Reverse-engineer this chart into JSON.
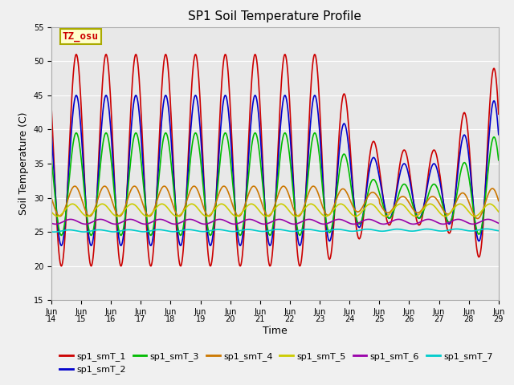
{
  "title": "SP1 Soil Temperature Profile",
  "xlabel": "Time",
  "ylabel": "Soil Temperature (C)",
  "ylim": [
    15,
    55
  ],
  "n_days": 15,
  "xtick_labels": [
    "Jun\n14",
    "Jun\n15",
    "Jun\n16",
    "Jun\n17",
    "Jun\n18",
    "Jun\n19",
    "Jun\n20",
    "Jun\n21",
    "Jun\n22",
    "Jun\n23",
    "Jun\n24",
    "Jun\n25",
    "Jun\n26",
    "Jun\n27",
    "Jun\n28",
    "Jun\n29"
  ],
  "ytick_vals": [
    15,
    20,
    25,
    30,
    35,
    40,
    45,
    50,
    55
  ],
  "series_colors": [
    "#cc0000",
    "#0000cc",
    "#00bb00",
    "#cc7700",
    "#cccc00",
    "#9900aa",
    "#00cccc"
  ],
  "series_labels": [
    "sp1_smT_1",
    "sp1_smT_2",
    "sp1_smT_3",
    "sp1_smT_4",
    "sp1_smT_5",
    "sp1_smT_6",
    "sp1_smT_7"
  ],
  "annotation_text": "TZ_osu",
  "annotation_color": "#cc0000",
  "annotation_bg": "#ffffcc",
  "annotation_border": "#aaaa00",
  "plot_bg": "#e8e8e8",
  "fig_bg": "#f0f0f0",
  "title_fontsize": 11,
  "axis_label_fontsize": 9,
  "tick_fontsize": 7,
  "legend_fontsize": 8,
  "linewidth": 1.2
}
